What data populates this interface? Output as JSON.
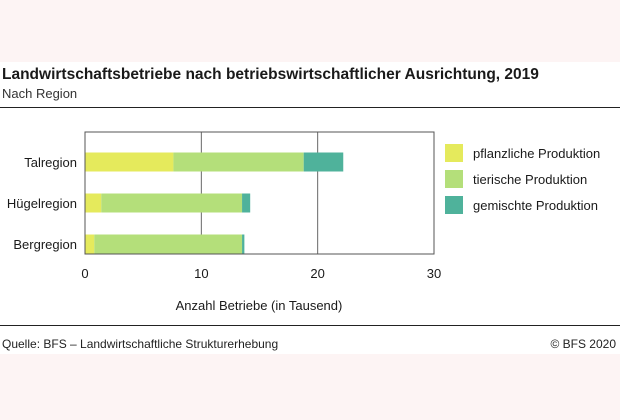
{
  "header": {
    "title": "Landwirtschaftsbetriebe nach betriebswirtschaftlicher Ausrichtung, 2019",
    "subtitle": "Nach Region"
  },
  "footer": {
    "source": "Quelle: BFS – Landwirtschaftliche Strukturerhebung",
    "copyright": "© BFS 2020"
  },
  "chart_data": {
    "type": "bar",
    "orientation": "horizontal",
    "stacked": true,
    "title": "Landwirtschaftsbetriebe nach betriebswirtschaftlicher Ausrichtung, 2019",
    "subtitle": "Nach Region",
    "xlabel": "Anzahl Betriebe (in Tausend)",
    "ylabel": "",
    "xlim": [
      0,
      30
    ],
    "xticks": [
      0,
      10,
      20,
      30
    ],
    "grid": true,
    "legend_position": "right",
    "categories": [
      "Talregion",
      "Hügelregion",
      "Bergregion"
    ],
    "series": [
      {
        "name": "pflanzliche Produktion",
        "color": "#e5ea5c",
        "values": [
          7.6,
          1.4,
          0.8
        ]
      },
      {
        "name": "tierische Produktion",
        "color": "#b4df7a",
        "values": [
          11.2,
          12.1,
          12.7
        ]
      },
      {
        "name": "gemischte Produktion",
        "color": "#4fb29b",
        "values": [
          3.4,
          0.7,
          0.2
        ]
      }
    ]
  }
}
